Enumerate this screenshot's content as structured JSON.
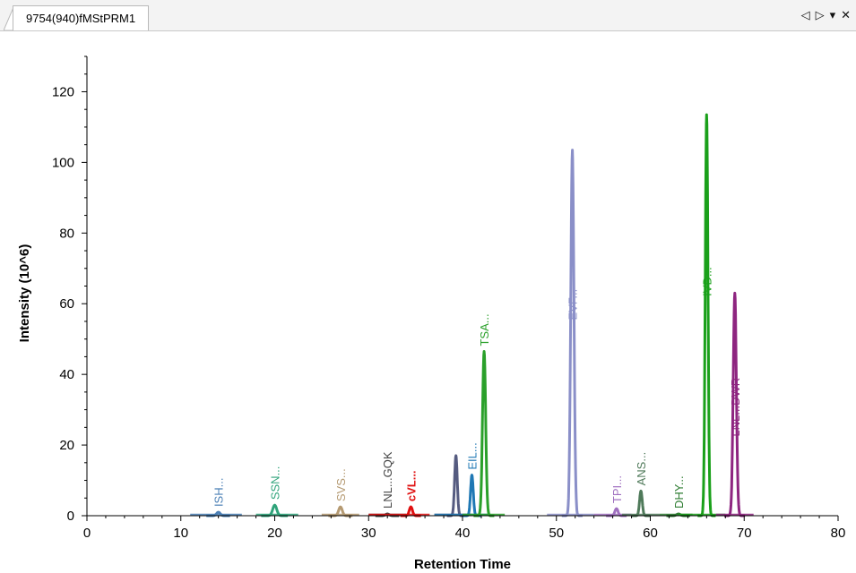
{
  "tab": {
    "title": "9754(940)fMStPRM1"
  },
  "controls": {
    "prev": "◁",
    "next": "▷",
    "menu": "▾",
    "close": "✕"
  },
  "chart_data": {
    "type": "line",
    "xlabel": "Retention Time",
    "ylabel": "Intensity (10^6)",
    "xlim": [
      0,
      80
    ],
    "ylim": [
      0,
      130
    ],
    "x_ticks": [
      0,
      10,
      20,
      30,
      40,
      50,
      60,
      70,
      80
    ],
    "y_ticks": [
      0,
      20,
      40,
      60,
      80,
      100,
      120
    ],
    "grid": false,
    "peaks": [
      {
        "label": "ISH...",
        "rt": 14.0,
        "height": 1.0,
        "width": 0.4,
        "base": [
          11,
          16.5
        ],
        "color": "#4a7fb5",
        "bold": false
      },
      {
        "label": "SSN...",
        "rt": 20.0,
        "height": 3.0,
        "width": 0.45,
        "base": [
          18,
          22.5
        ],
        "color": "#2fa37a",
        "bold": false
      },
      {
        "label": "SVS...",
        "rt": 27.0,
        "height": 2.5,
        "width": 0.4,
        "base": [
          25,
          29
        ],
        "color": "#b59a72",
        "bold": false
      },
      {
        "label": "LNL...GQK",
        "rt": 32.0,
        "height": 0.5,
        "width": 0.4,
        "base": [
          30,
          34
        ],
        "color": "#444444",
        "bold": false
      },
      {
        "label": "cVL...",
        "rt": 34.5,
        "height": 2.5,
        "width": 0.35,
        "base": [
          30,
          36.5
        ],
        "color": "#e01010",
        "bold": true
      },
      {
        "label": "",
        "rt": 39.3,
        "height": 17.0,
        "width": 0.3,
        "base": [
          37,
          41
        ],
        "color": "#555b80",
        "bold": false
      },
      {
        "label": "EIL...",
        "rt": 41.0,
        "height": 11.5,
        "width": 0.3,
        "base": [
          37,
          43
        ],
        "color": "#1f78b4",
        "bold": false
      },
      {
        "label": "TSA...",
        "rt": 42.3,
        "height": 46.5,
        "width": 0.35,
        "base": [
          40,
          44.5
        ],
        "color": "#2aa02a",
        "bold": false
      },
      {
        "label": "EVF...",
        "rt": 51.7,
        "height": 103.5,
        "width": 0.35,
        "base": [
          49,
          54
        ],
        "color": "#8a8fc8",
        "bold": false
      },
      {
        "label": "TPI...",
        "rt": 56.4,
        "height": 2.0,
        "width": 0.35,
        "base": [
          54,
          58
        ],
        "color": "#a070c0",
        "bold": false
      },
      {
        "label": "ANS...",
        "rt": 59.0,
        "height": 7.0,
        "width": 0.3,
        "base": [
          57,
          61
        ],
        "color": "#4f7a5a",
        "bold": false
      },
      {
        "label": "DHY...",
        "rt": 63.0,
        "height": 0.5,
        "width": 0.4,
        "base": [
          61,
          64.5
        ],
        "color": "#2e7d32",
        "bold": false
      },
      {
        "label": "IVD...",
        "rt": 66.0,
        "height": 113.5,
        "width": 0.3,
        "base": [
          63,
          68
        ],
        "color": "#1aa01a",
        "bold": false
      },
      {
        "label": "LNL...DWR",
        "rt": 69.0,
        "height": 63.0,
        "width": 0.35,
        "base": [
          67,
          71
        ],
        "color": "#8e2580",
        "bold": false
      }
    ]
  }
}
